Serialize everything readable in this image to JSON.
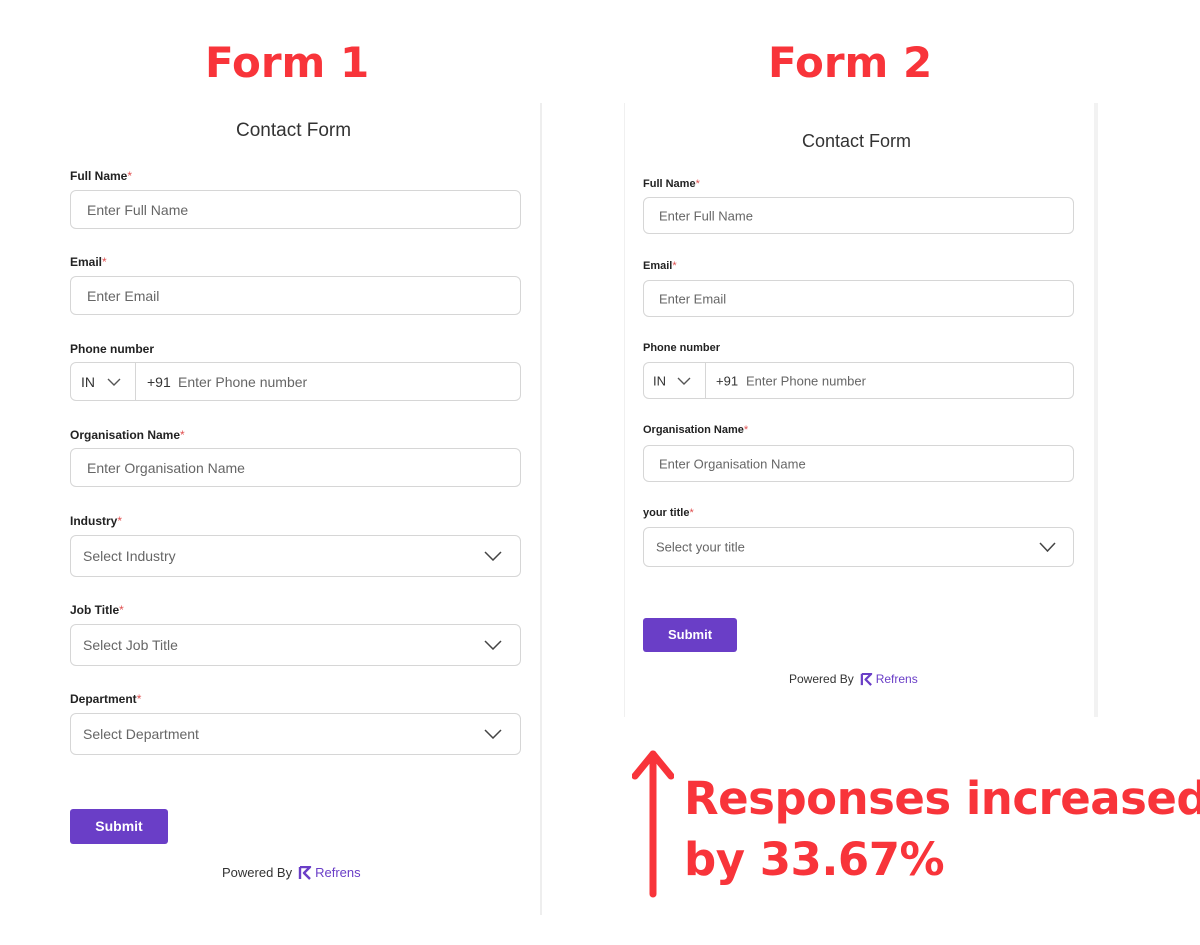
{
  "headings": {
    "form1": "Form 1",
    "form2": "Form 2"
  },
  "callout": {
    "line1": "Responses increased",
    "line2": "by 33.67%"
  },
  "common": {
    "required_mark": "*",
    "submit_label": "Submit",
    "powered_by": "Powered By",
    "brand": "Refrens",
    "country_code": "IN",
    "dial_code": "+91"
  },
  "form1": {
    "title": "Contact Form",
    "full_name": {
      "label": "Full Name",
      "placeholder": "Enter Full Name"
    },
    "email": {
      "label": "Email",
      "placeholder": "Enter Email"
    },
    "phone": {
      "label": "Phone number",
      "placeholder": "Enter Phone number"
    },
    "organisation": {
      "label": "Organisation Name",
      "placeholder": "Enter Organisation Name"
    },
    "industry": {
      "label": "Industry",
      "placeholder": "Select Industry"
    },
    "job_title": {
      "label": "Job Title",
      "placeholder": "Select Job Title"
    },
    "department": {
      "label": "Department",
      "placeholder": "Select Department"
    }
  },
  "form2": {
    "title": "Contact Form",
    "full_name": {
      "label": "Full Name",
      "placeholder": "Enter Full Name"
    },
    "email": {
      "label": "Email",
      "placeholder": "Enter Email"
    },
    "phone": {
      "label": "Phone number",
      "placeholder": "Enter Phone number"
    },
    "organisation": {
      "label": "Organisation Name",
      "placeholder": "Enter Organisation Name"
    },
    "your_title": {
      "label": "your title",
      "placeholder": "Select your title"
    }
  },
  "colors": {
    "accent_red": "#f8343a",
    "submit_purple": "#6a3ec7"
  }
}
